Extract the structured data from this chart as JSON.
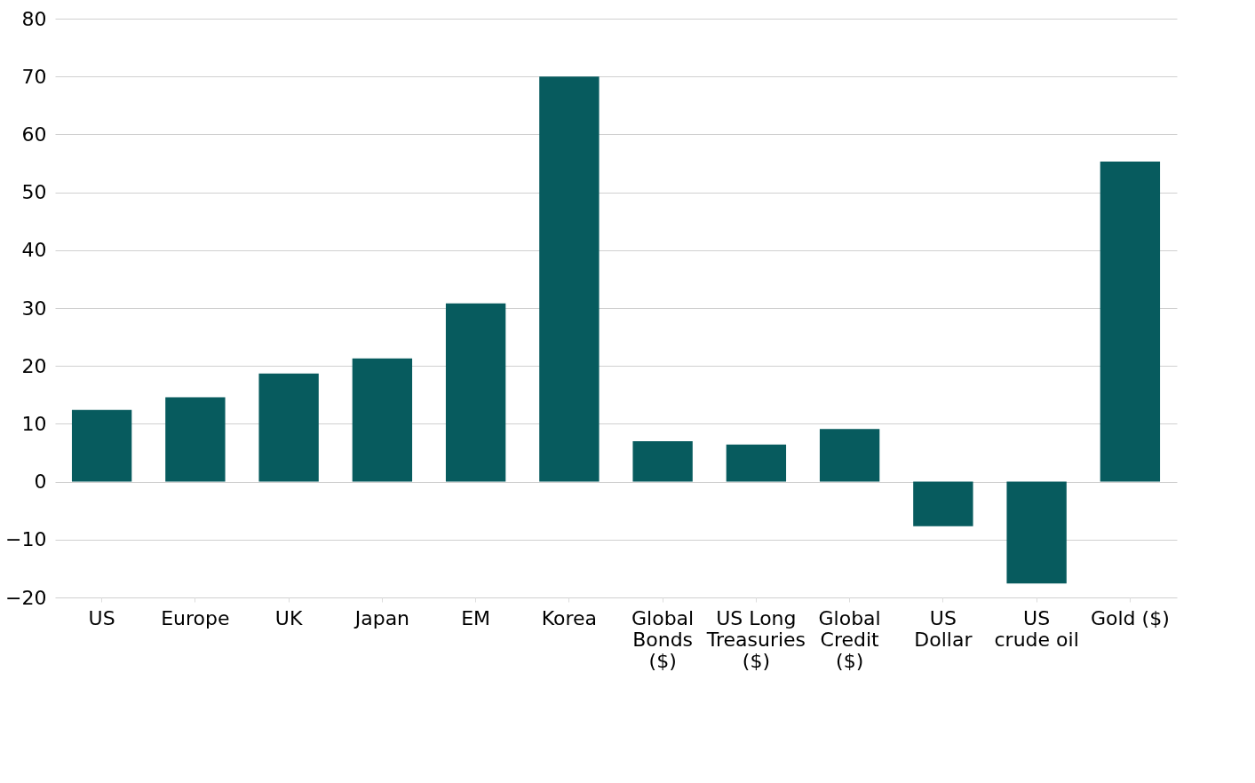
{
  "chart_data": {
    "type": "bar",
    "categories": [
      "US",
      "Europe",
      "UK",
      "Japan",
      "EM",
      "Korea",
      "Global\nBonds\n($)",
      "US Long\nTreasuries\n($)",
      "Global\nCredit\n($)",
      "US\nDollar",
      "US\ncrude oil",
      "Gold ($)"
    ],
    "values": [
      12.4,
      14.6,
      18.7,
      21.3,
      30.8,
      70.0,
      7.0,
      6.4,
      9.1,
      -7.7,
      -17.6,
      55.3
    ],
    "color": "#075b5e",
    "ylim": [
      -20,
      80
    ],
    "yticks": [
      -20,
      -10,
      0,
      10,
      20,
      30,
      40,
      50,
      60,
      70,
      80
    ],
    "grid": "y"
  }
}
